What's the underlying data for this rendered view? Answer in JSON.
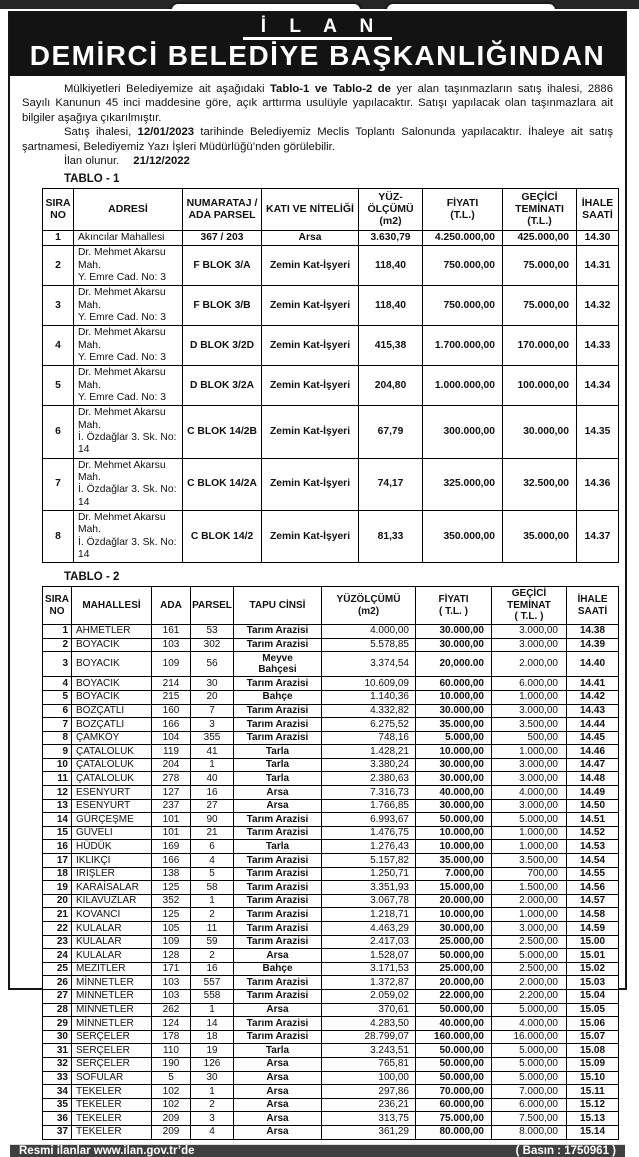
{
  "colors": {
    "band_bg": "#131313",
    "footer_bg": "#3f3f3f",
    "text": "#111111"
  },
  "header": {
    "line1": "İ L A N",
    "line2": "DEMİRCİ BELEDİYE BAŞKANLIĞINDAN"
  },
  "intro": {
    "p1a": "Mülkiyetleri Belediyemize ait aşağıdaki ",
    "p1b": "Tablo-1 ve Tablo-2 de",
    "p1c": " yer alan taşınmazların satış ihalesi, 2886 Sayılı Kanunun 45 inci maddesine göre, açık arttırma usulüyle yapılacaktır. Satışı yapılacak olan taşınmazlara ait bilgiler aşağıya çıkarılmıştır.",
    "p2a": "Satış ihalesi, ",
    "p2b": "12/01/2023",
    "p2c": " tarihinde Belediyemiz Meclis Toplantı Salonunda yapılacaktır. İhaleye ait satış şartnamesi, Belediyemiz Yazı İşleri Müdürlüğü’nden görülebilir.",
    "p3a": "İlan olunur.",
    "p3b": "21/12/2022"
  },
  "table1": {
    "label": "TABLO - 1",
    "headers": [
      "SIRA\nNO",
      "ADRESİ",
      "NUMARATAJ /\nADA PARSEL",
      "KATI VE NİTELİĞİ",
      "YÜZ-\nÖLÇÜMÜ\n(m2)",
      "FİYATI\n(T.L.)",
      "GEÇİCİ\nTEMİNATI\n(T.L.)",
      "İHALE\nSAATİ"
    ],
    "rows": [
      [
        "1",
        "Akıncılar Mahallesi",
        "367 / 203",
        "Arsa",
        "3.630,79",
        "4.250.000,00",
        "425.000,00",
        "14.30"
      ],
      [
        "2",
        "Dr. Mehmet Akarsu Mah.\nY. Emre Cad. No: 3",
        "F BLOK 3/A",
        "Zemin Kat-İşyeri",
        "118,40",
        "750.000,00",
        "75.000,00",
        "14.31"
      ],
      [
        "3",
        "Dr. Mehmet Akarsu Mah.\nY. Emre Cad. No: 3",
        "F BLOK 3/B",
        "Zemin Kat-İşyeri",
        "118,40",
        "750.000,00",
        "75.000,00",
        "14.32"
      ],
      [
        "4",
        "Dr. Mehmet Akarsu Mah.\nY. Emre Cad. No: 3",
        "D BLOK 3/2D",
        "Zemin Kat-İşyeri",
        "415,38",
        "1.700.000,00",
        "170.000,00",
        "14.33"
      ],
      [
        "5",
        "Dr. Mehmet Akarsu Mah.\nY. Emre Cad. No: 3",
        "D BLOK 3/2A",
        "Zemin Kat-İşyeri",
        "204,80",
        "1.000.000,00",
        "100.000,00",
        "14.34"
      ],
      [
        "6",
        "Dr. Mehmet Akarsu Mah.\nİ. Özdağlar 3. Sk. No: 14",
        "C BLOK 14/2B",
        "Zemin Kat-İşyeri",
        "67,79",
        "300.000,00",
        "30.000,00",
        "14.35"
      ],
      [
        "7",
        "Dr. Mehmet Akarsu Mah.\nİ. Özdağlar 3. Sk. No: 14",
        "C BLOK 14/2A",
        "Zemin Kat-İşyeri",
        "74,17",
        "325.000,00",
        "32.500,00",
        "14.36"
      ],
      [
        "8",
        "Dr. Mehmet Akarsu Mah.\nİ. Özdağlar 3. Sk. No: 14",
        "C BLOK 14/2",
        "Zemin Kat-İşyeri",
        "81,33",
        "350.000,00",
        "35.000,00",
        "14.37"
      ]
    ]
  },
  "table2": {
    "label": "TABLO - 2",
    "headers": [
      "SIRA\nNO",
      "MAHALLESİ",
      "ADA",
      "PARSEL",
      "TAPU CİNSİ",
      "YÜZÖLÇÜMÜ\n(m2)",
      "FİYATI\n( T.L. )",
      "GEÇİCİ\nTEMİNAT\n( T.L. )",
      "İHALE\nSAATİ"
    ],
    "rows": [
      [
        "1",
        "AHMETLER",
        "161",
        "53",
        "Tarım Arazisi",
        "4.000,00",
        "30.000,00",
        "3.000,00",
        "14.38"
      ],
      [
        "2",
        "BOYACIK",
        "103",
        "302",
        "Tarım Arazisi",
        "5.578,85",
        "30.000,00",
        "3.000,00",
        "14.39"
      ],
      [
        "3",
        "BOYACIK",
        "109",
        "56",
        "Meyve\nBahçesi",
        "3.374,54",
        "20,000.00",
        "2.000,00",
        "14.40"
      ],
      [
        "4",
        "BOYACIK",
        "214",
        "30",
        "Tarım Arazisi",
        "10.609,09",
        "60.000,00",
        "6.000,00",
        "14.41"
      ],
      [
        "5",
        "BOYACIK",
        "215",
        "20",
        "Bahçe",
        "1.140,36",
        "10.000,00",
        "1.000,00",
        "14.42"
      ],
      [
        "6",
        "BOZÇATLI",
        "160",
        "7",
        "Tarım Arazisi",
        "4.332,82",
        "30.000,00",
        "3.000,00",
        "14.43"
      ],
      [
        "7",
        "BOZÇATLI",
        "166",
        "3",
        "Tarım Arazisi",
        "6.275,52",
        "35.000,00",
        "3.500,00",
        "14.44"
      ],
      [
        "8",
        "ÇAMKÖY",
        "104",
        "355",
        "Tarım Arazisi",
        "748,16",
        "5.000,00",
        "500,00",
        "14.45"
      ],
      [
        "9",
        "ÇATALOLUK",
        "119",
        "41",
        "Tarla",
        "1.428,21",
        "10.000,00",
        "1.000,00",
        "14.46"
      ],
      [
        "10",
        "ÇATALOLUK",
        "204",
        "1",
        "Tarla",
        "3.380,24",
        "30.000,00",
        "3.000,00",
        "14.47"
      ],
      [
        "11",
        "ÇATALOLUK",
        "278",
        "40",
        "Tarla",
        "2.380,63",
        "30.000,00",
        "3.000,00",
        "14.48"
      ],
      [
        "12",
        "ESENYURT",
        "127",
        "16",
        "Arsa",
        "7.316,73",
        "40.000,00",
        "4.000,00",
        "14.49"
      ],
      [
        "13",
        "ESENYURT",
        "237",
        "27",
        "Arsa",
        "1.766,85",
        "30.000,00",
        "3.000,00",
        "14.50"
      ],
      [
        "14",
        "GÜRÇEŞME",
        "101",
        "90",
        "Tarım Arazisi",
        "6.993,67",
        "50.000,00",
        "5.000,00",
        "14.51"
      ],
      [
        "15",
        "GÜVELİ",
        "101",
        "21",
        "Tarım Arazisi",
        "1.476,75",
        "10.000,00",
        "1.000,00",
        "14.52"
      ],
      [
        "16",
        "HÜDÜK",
        "169",
        "6",
        "Tarla",
        "1.276,43",
        "10.000,00",
        "1.000,00",
        "14.53"
      ],
      [
        "17",
        "IKLIKÇI",
        "166",
        "4",
        "Tarım Arazisi",
        "5.157,82",
        "35.000,00",
        "3.500,00",
        "14.54"
      ],
      [
        "18",
        "İRİŞLER",
        "138",
        "5",
        "Tarım Arazisi",
        "1.250,71",
        "7.000,00",
        "700,00",
        "14.55"
      ],
      [
        "19",
        "KARAİSALAR",
        "125",
        "58",
        "Tarım Arazisi",
        "3.351,93",
        "15.000,00",
        "1.500,00",
        "14.56"
      ],
      [
        "20",
        "KILAVUZLAR",
        "352",
        "1",
        "Tarım Arazisi",
        "3.067,78",
        "20.000,00",
        "2.000,00",
        "14.57"
      ],
      [
        "21",
        "KOVANCI",
        "125",
        "2",
        "Tarım Arazisi",
        "1.218,71",
        "10.000,00",
        "1.000,00",
        "14.58"
      ],
      [
        "22",
        "KULALAR",
        "105",
        "11",
        "Tarım Arazisi",
        "4.463,29",
        "30.000,00",
        "3.000,00",
        "14.59"
      ],
      [
        "23",
        "KULALAR",
        "109",
        "59",
        "Tarım Arazisi",
        "2.417,03",
        "25.000,00",
        "2.500,00",
        "15.00"
      ],
      [
        "24",
        "KULALAR",
        "128",
        "2",
        "Arsa",
        "1.528,07",
        "50.000,00",
        "5.000,00",
        "15.01"
      ],
      [
        "25",
        "MEZİTLER",
        "171",
        "16",
        "Bahçe",
        "3.171,53",
        "25.000,00",
        "2.500,00",
        "15.02"
      ],
      [
        "26",
        "MİNNETLER",
        "103",
        "557",
        "Tarım Arazisi",
        "1.372,87",
        "20.000,00",
        "2.000,00",
        "15.03"
      ],
      [
        "27",
        "MİNNETLER",
        "103",
        "558",
        "Tarım Arazisi",
        "2.059,02",
        "22.000,00",
        "2.200,00",
        "15.04"
      ],
      [
        "28",
        "MİNNETLER",
        "262",
        "1",
        "Arsa",
        "370,61",
        "50.000,00",
        "5.000,00",
        "15.05"
      ],
      [
        "29",
        "MİNNETLER",
        "124",
        "14",
        "Tarım Arazisi",
        "4.283,50",
        "40.000,00",
        "4.000,00",
        "15.06"
      ],
      [
        "30",
        "SERÇELER",
        "178",
        "18",
        "Tarım Arazisi",
        "28.799,07",
        "160.000,00",
        "16.000,00",
        "15.07"
      ],
      [
        "31",
        "SERÇELER",
        "110",
        "19",
        "Tarla",
        "3.243,51",
        "50.000,00",
        "5.000,00",
        "15.08"
      ],
      [
        "32",
        "SERÇELER",
        "190",
        "126",
        "Arsa",
        "765,81",
        "50.000,00",
        "5.000,00",
        "15.09"
      ],
      [
        "33",
        "SOFULAR",
        "5",
        "30",
        "Arsa",
        "100,00",
        "50.000,00",
        "5.000,00",
        "15.10"
      ],
      [
        "34",
        "TEKELER",
        "102",
        "1",
        "Arsa",
        "297,86",
        "70.000,00",
        "7.000,00",
        "15.11"
      ],
      [
        "35",
        "TEKELER",
        "102",
        "2",
        "Arsa",
        "236,21",
        "60.000,00",
        "6.000,00",
        "15.12"
      ],
      [
        "36",
        "TEKELER",
        "209",
        "3",
        "Arsa",
        "313,75",
        "75.000,00",
        "7.500,00",
        "15.13"
      ],
      [
        "37",
        "TEKELER",
        "209",
        "4",
        "Arsa",
        "361,29",
        "80.000,00",
        "8.000,00",
        "15.14"
      ]
    ]
  },
  "footer": {
    "left": "Resmi ilanlar www.ilan.gov.tr’de",
    "right": "( Basın : 1750961 )"
  }
}
